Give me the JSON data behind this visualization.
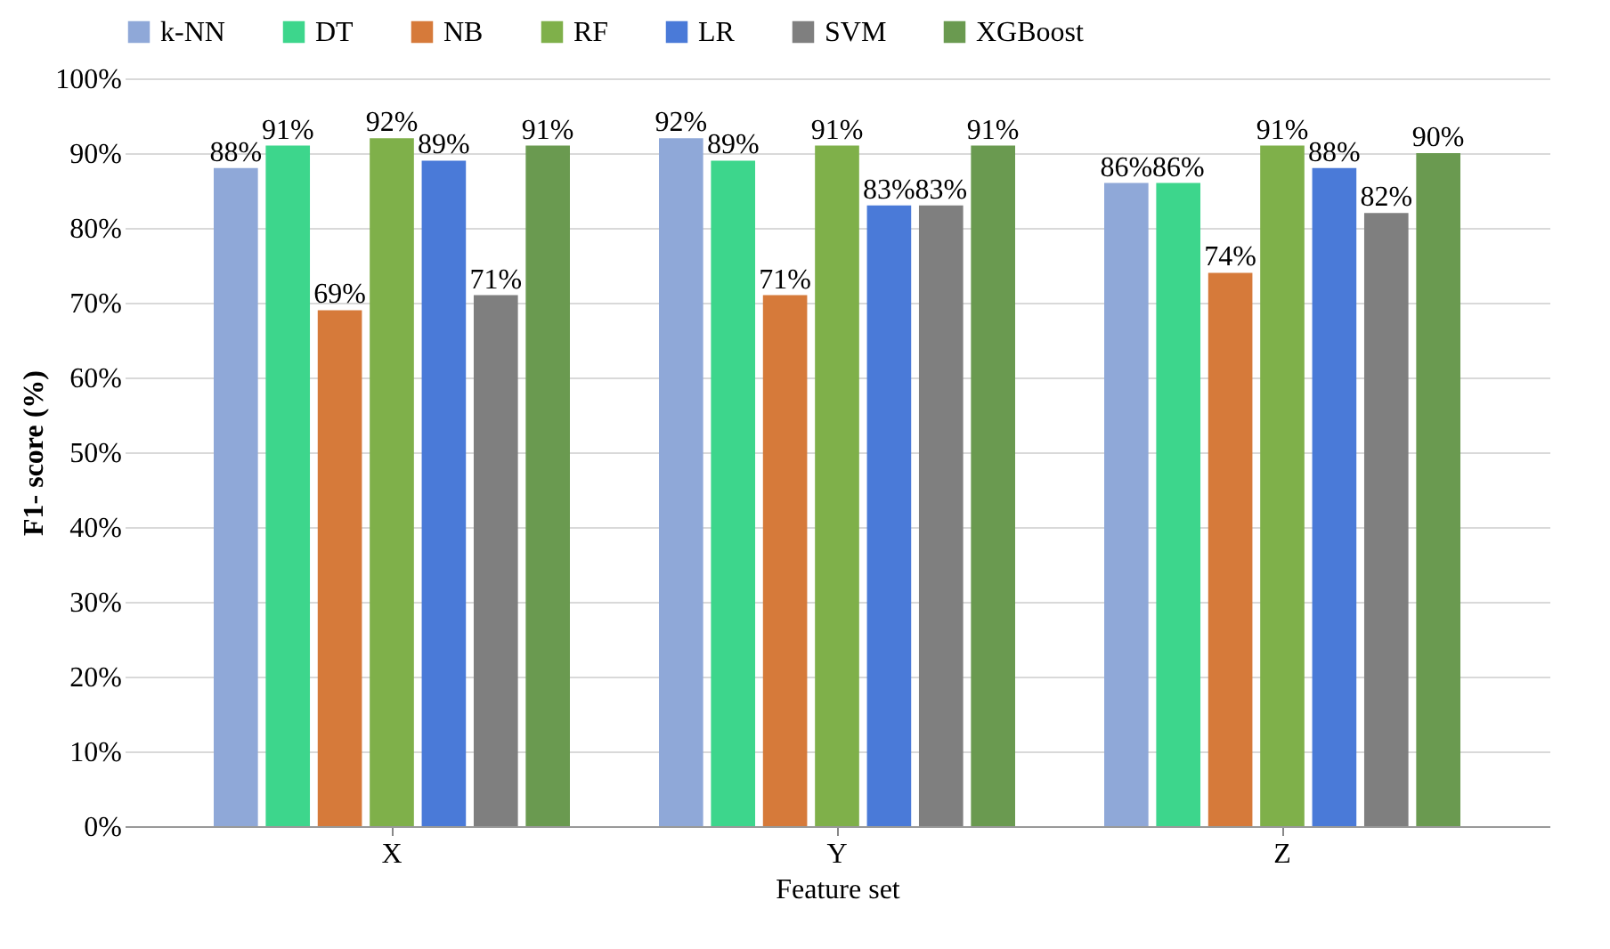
{
  "chart_data": {
    "type": "bar",
    "xlabel": "Feature set",
    "ylabel": "F1- score (%)",
    "categories": [
      "X",
      "Y",
      "Z"
    ],
    "series": [
      {
        "name": "k-NN",
        "color": "#8fa8d8",
        "values": [
          88,
          92,
          86
        ],
        "value_labels": [
          "88%",
          "92%",
          "86%"
        ]
      },
      {
        "name": "DT",
        "color": "#3dd68c",
        "values": [
          91,
          89,
          86
        ],
        "value_labels": [
          "91%",
          "89%",
          "86%"
        ]
      },
      {
        "name": "NB",
        "color": "#d67a3a",
        "values": [
          69,
          71,
          74
        ],
        "value_labels": [
          "69%",
          "71%",
          "74%"
        ]
      },
      {
        "name": "RF",
        "color": "#7fb04a",
        "values": [
          92,
          91,
          91
        ],
        "value_labels": [
          "92%",
          "91%",
          "91%"
        ]
      },
      {
        "name": "LR",
        "color": "#4a7ad8",
        "values": [
          89,
          83,
          88
        ],
        "value_labels": [
          "89%",
          "83%",
          "88%"
        ]
      },
      {
        "name": "SVM",
        "color": "#7f7f7f",
        "values": [
          71,
          83,
          82
        ],
        "value_labels": [
          "71%",
          "83%",
          "82%"
        ]
      },
      {
        "name": "XGBoost",
        "color": "#6a9a50",
        "values": [
          91,
          91,
          90
        ],
        "value_labels": [
          "91%",
          "91%",
          "90%"
        ]
      }
    ],
    "ylim": [
      0,
      100
    ],
    "yticks": [
      {
        "value": 0,
        "label": "0%"
      },
      {
        "value": 10,
        "label": "10%"
      },
      {
        "value": 20,
        "label": "20%"
      },
      {
        "value": 30,
        "label": "30%"
      },
      {
        "value": 40,
        "label": "40%"
      },
      {
        "value": 50,
        "label": "50%"
      },
      {
        "value": 60,
        "label": "60%"
      },
      {
        "value": 70,
        "label": "70%"
      },
      {
        "value": 80,
        "label": "80%"
      },
      {
        "value": 90,
        "label": "90%"
      },
      {
        "value": 100,
        "label": "100%"
      }
    ],
    "grid": "y",
    "legend": "top"
  }
}
